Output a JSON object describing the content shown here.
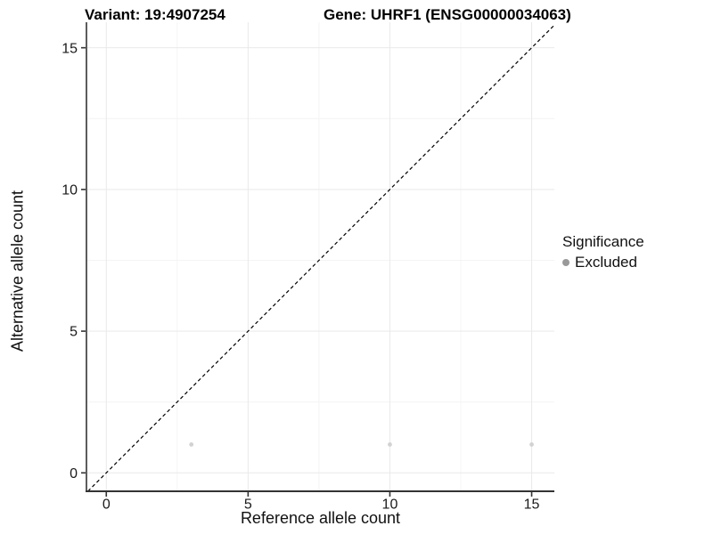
{
  "header": {
    "variant_title": "Variant: 19:4907254",
    "gene_title": "Gene: UHRF1 (ENSG00000034063)"
  },
  "chart_data": {
    "type": "scatter",
    "xlabel": "Reference allele count",
    "ylabel": "Alternative allele count",
    "xlim": [
      -0.7,
      15.8
    ],
    "ylim": [
      -0.65,
      15.9
    ],
    "xticks": [
      0,
      5,
      10,
      15
    ],
    "xtick_labels": [
      "0",
      "5",
      "10",
      "15"
    ],
    "yticks": [
      0,
      5,
      10,
      15
    ],
    "ytick_labels": [
      "0",
      "5",
      "10",
      "15"
    ],
    "xticks_minor": [
      2.5,
      7.5,
      12.5
    ],
    "yticks_minor": [
      2.5,
      7.5,
      12.5
    ],
    "grid": true,
    "series": [
      {
        "name": "Excluded",
        "points": [
          {
            "x": 3,
            "y": 1
          },
          {
            "x": 10,
            "y": 1
          },
          {
            "x": 15,
            "y": 1
          }
        ],
        "color": "#d2d2d2",
        "marker": "circle",
        "marker_radius": 2.4
      }
    ],
    "identity_line": {
      "slope": 1,
      "intercept": 0,
      "style": "dashed",
      "color": "#000000"
    },
    "legend": {
      "title": "Significance",
      "position": "right",
      "entries": [
        {
          "label": "Excluded",
          "color": "#999999"
        }
      ]
    }
  },
  "colors": {
    "background": "#ffffff",
    "grid_major": "#e9e9e9",
    "grid_minor": "#f4f4f4",
    "axis_line": "#333333",
    "tick_mark": "#333333",
    "tick_label": "#1a1a1a",
    "point": "#d2d2d2",
    "legend_point": "#999999"
  }
}
